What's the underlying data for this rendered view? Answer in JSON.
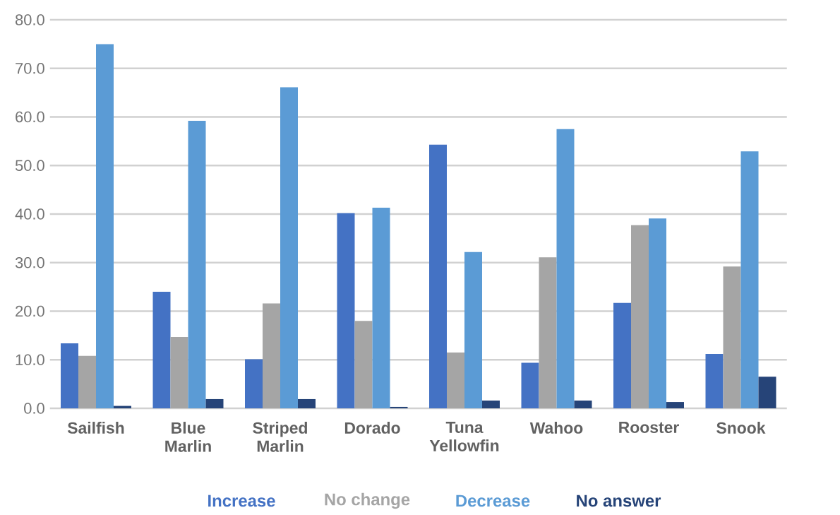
{
  "chart_data": {
    "type": "bar",
    "categories": [
      "Sailfish",
      "Blue Marlin",
      "Striped Marlin",
      "Dorado",
      "Tuna Yellowfin",
      "Wahoo",
      "Rooster",
      "Snook"
    ],
    "series": [
      {
        "name": "Increase",
        "color": "#4472c4",
        "values": [
          13.4,
          24.0,
          10.1,
          40.2,
          54.3,
          9.4,
          21.7,
          11.2
        ]
      },
      {
        "name": "No change",
        "color": "#a5a5a5",
        "values": [
          10.8,
          14.7,
          21.6,
          18.0,
          11.5,
          31.1,
          37.7,
          29.2
        ]
      },
      {
        "name": "Decrease",
        "color": "#5b9bd5",
        "values": [
          75.0,
          59.2,
          66.1,
          41.3,
          32.2,
          57.5,
          39.1,
          52.9
        ]
      },
      {
        "name": "No answer",
        "color": "#264478",
        "values": [
          0.5,
          1.9,
          1.9,
          0.3,
          1.6,
          1.6,
          1.3,
          6.5
        ]
      }
    ],
    "ylim": [
      0,
      80
    ],
    "yticks": [
      {
        "value": 0,
        "label": "0.0"
      },
      {
        "value": 10,
        "label": "10.0"
      },
      {
        "value": 20,
        "label": "20.0"
      },
      {
        "value": 30,
        "label": "30.0"
      },
      {
        "value": 40,
        "label": "40.0"
      },
      {
        "value": 50,
        "label": "50.0"
      },
      {
        "value": 60,
        "label": "60.0"
      },
      {
        "value": 70,
        "label": "70.0"
      },
      {
        "value": 80,
        "label": "80.0"
      }
    ],
    "grid": "y",
    "legend": "bottom"
  }
}
